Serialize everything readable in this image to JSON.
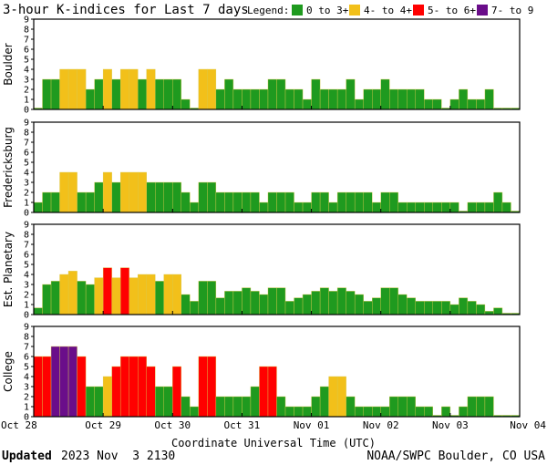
{
  "colors": {
    "quiet": "#1f9a1f",
    "active": "#f2c01a",
    "storm": "#ff0000",
    "severe": "#6a0d8a",
    "frame": "#000000"
  },
  "chart_data": {
    "type": "bar",
    "title": "3-hour K-indices for Last 7 days",
    "xlabel": "Coordinate Universal Time (UTC)",
    "ylim": [
      0,
      9
    ],
    "yticks": [
      "0",
      "1",
      "2",
      "3",
      "4",
      "5",
      "6",
      "7",
      "8",
      "9"
    ],
    "legend": {
      "title": "Legend:",
      "placement": "top-right",
      "entries": [
        {
          "label": "0 to 3+",
          "color": "#1f9a1f"
        },
        {
          "label": "4- to 4+",
          "color": "#f2c01a"
        },
        {
          "label": "5- to 6+",
          "color": "#ff0000"
        },
        {
          "label": "7- to 9",
          "color": "#6a0d8a"
        }
      ]
    },
    "x_ticks": [
      "Oct 28",
      "Oct 29",
      "Oct 30",
      "Oct 31",
      "Nov 01",
      "Nov 02",
      "Nov 03",
      "Nov 04"
    ],
    "intervals_per_day": 8,
    "panels": [
      {
        "name": "Boulder",
        "values": [
          0,
          3,
          3,
          4,
          4,
          4,
          2,
          3,
          4,
          3,
          4,
          4,
          3,
          4,
          3,
          3,
          3,
          1,
          0,
          4,
          4,
          2,
          3,
          2,
          2,
          2,
          2,
          3,
          3,
          2,
          2,
          1,
          3,
          2,
          2,
          2,
          3,
          1,
          2,
          2,
          3,
          2,
          2,
          2,
          2,
          1,
          1,
          0,
          1,
          2,
          1,
          1,
          2,
          0,
          0,
          0
        ]
      },
      {
        "name": "Fredericksburg",
        "values": [
          1,
          2,
          2,
          4,
          4,
          2,
          2,
          3,
          4,
          3,
          4,
          4,
          4,
          3,
          3,
          3,
          3,
          2,
          1,
          3,
          3,
          2,
          2,
          2,
          2,
          2,
          1,
          2,
          2,
          2,
          1,
          1,
          2,
          2,
          1,
          2,
          2,
          2,
          2,
          1,
          2,
          2,
          1,
          1,
          1,
          1,
          1,
          1,
          1,
          0,
          1,
          1,
          1,
          2,
          1,
          0
        ]
      },
      {
        "name": "Est. Planetary",
        "values": [
          0.67,
          3,
          3.33,
          4,
          4.33,
          3.33,
          3,
          3.67,
          4.67,
          3.67,
          4.67,
          3.67,
          4,
          4,
          3.33,
          4,
          4,
          2,
          1.33,
          3.33,
          3.33,
          1.67,
          2.33,
          2.33,
          2.67,
          2.33,
          2,
          2.67,
          2.67,
          1.33,
          1.67,
          2,
          2.33,
          2.67,
          2.33,
          2.67,
          2.33,
          2,
          1.33,
          1.67,
          2.67,
          2.67,
          2,
          1.67,
          1.33,
          1.33,
          1.33,
          1.33,
          1,
          1.67,
          1.33,
          1,
          0.33,
          0.67,
          0,
          0
        ]
      },
      {
        "name": "College",
        "values": [
          6,
          6,
          7,
          7,
          7,
          6,
          3,
          3,
          4,
          5,
          6,
          6,
          6,
          5,
          3,
          3,
          5,
          2,
          1,
          6,
          6,
          2,
          2,
          2,
          2,
          3,
          5,
          5,
          2,
          1,
          1,
          1,
          2,
          3,
          4,
          4,
          2,
          1,
          1,
          1,
          1,
          2,
          2,
          2,
          1,
          1,
          0,
          1,
          0,
          1,
          2,
          2,
          2,
          0,
          0,
          0
        ]
      }
    ]
  },
  "footer": {
    "updated_label": "Updated",
    "updated_value": "2023 Nov  3 2130",
    "credit": "NOAA/SWPC Boulder, CO USA"
  }
}
